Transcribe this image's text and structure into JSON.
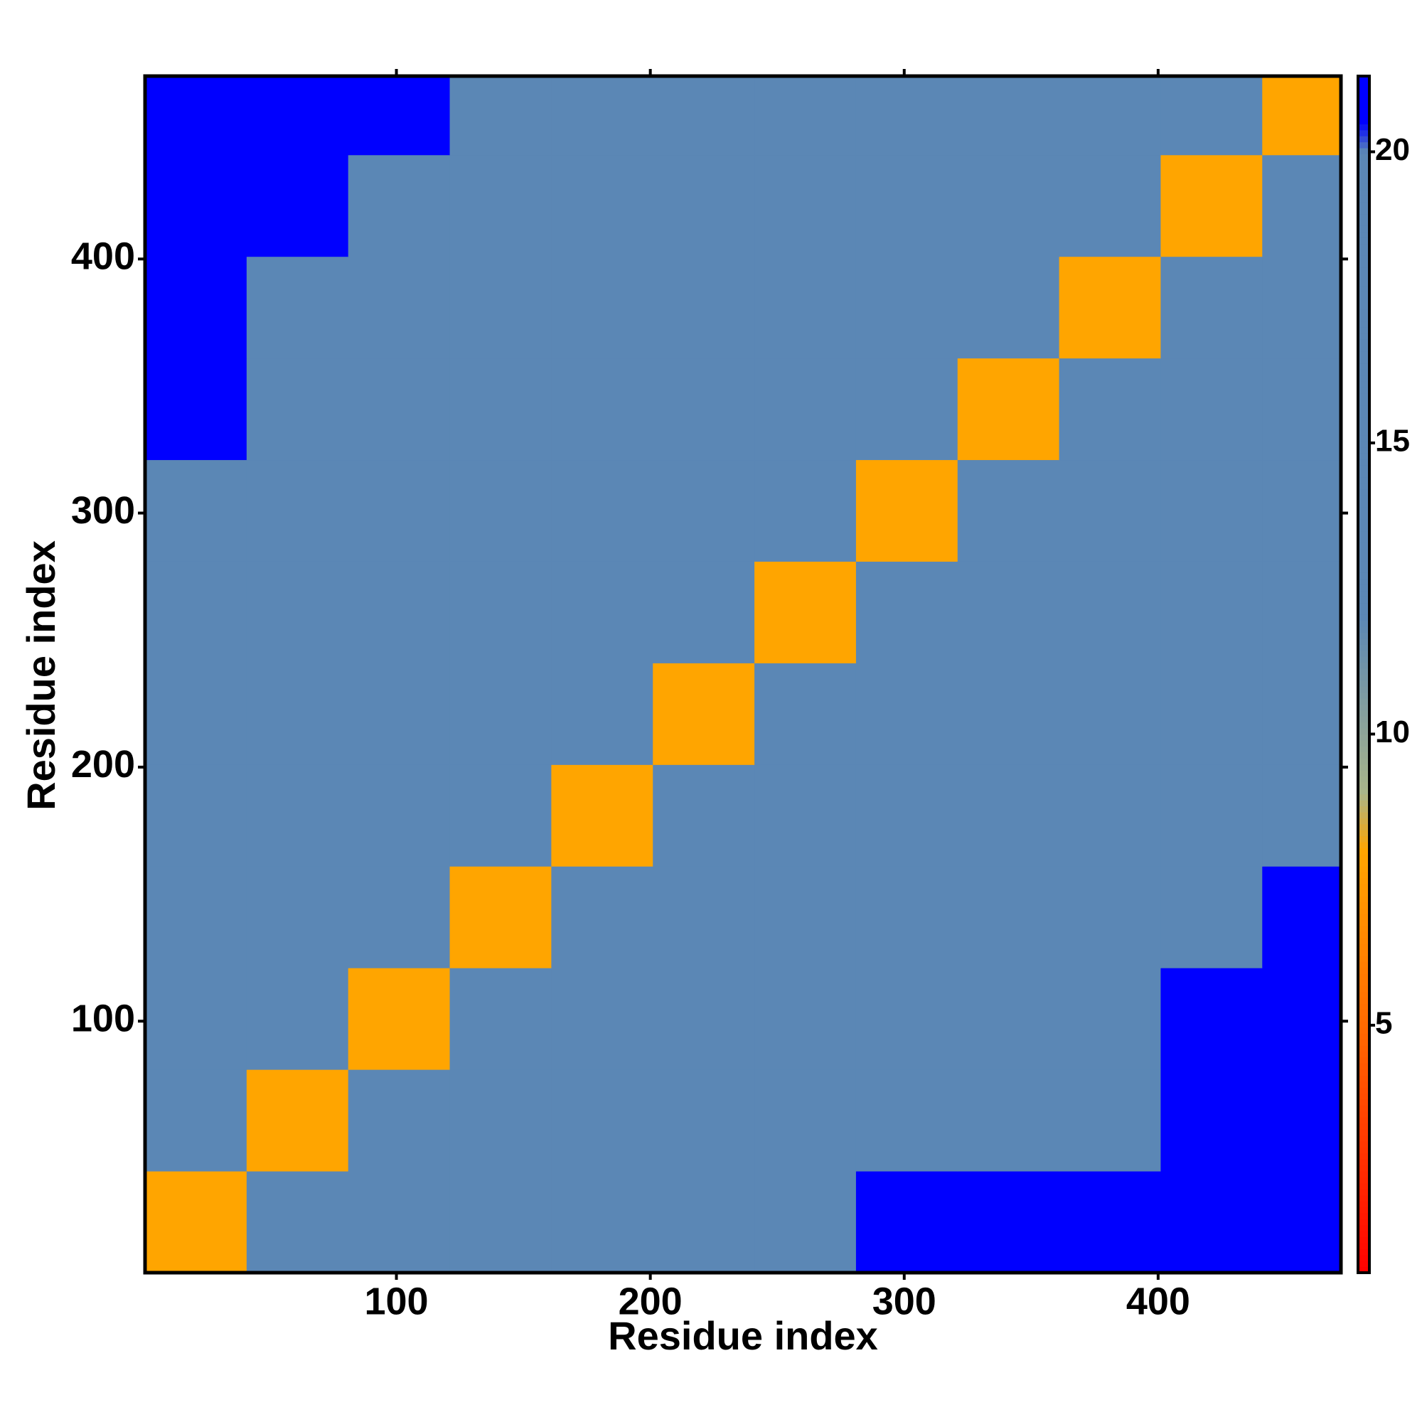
{
  "chart_data": {
    "type": "heatmap",
    "xlabel": "Residue index",
    "ylabel": "Residue index",
    "xbins": [
      1,
      41,
      81,
      121,
      161,
      201,
      241,
      281,
      321,
      361,
      401,
      441,
      472
    ],
    "ybins": [
      1,
      41,
      81,
      121,
      161,
      201,
      241,
      281,
      321,
      361,
      401,
      441,
      472
    ],
    "xlim": [
      1,
      472
    ],
    "ylim": [
      1,
      472
    ],
    "xticks": [
      100,
      200,
      300,
      400
    ],
    "yticks": [
      100,
      200,
      300,
      400
    ],
    "z": [
      [
        8,
        16,
        17,
        19,
        19,
        19,
        19,
        21,
        21,
        21,
        21,
        21
      ],
      [
        16,
        8,
        15,
        18,
        18,
        18,
        18,
        20,
        20,
        20,
        21,
        21
      ],
      [
        18,
        14,
        8,
        15,
        18,
        18,
        18,
        20,
        20,
        19,
        21,
        21
      ],
      [
        18,
        17,
        14,
        8,
        15,
        18,
        18,
        20,
        19,
        19,
        20,
        21
      ],
      [
        19,
        18,
        17,
        14,
        8,
        14,
        18,
        19,
        19,
        19,
        19,
        20
      ],
      [
        19,
        18,
        18,
        17,
        14,
        8,
        14,
        17,
        19,
        18,
        19,
        20
      ],
      [
        19,
        18,
        18,
        18,
        16,
        14,
        8,
        14,
        17,
        18,
        18,
        19
      ],
      [
        20,
        18,
        18,
        18,
        18,
        17,
        14,
        8,
        14,
        17,
        18,
        19
      ],
      [
        21,
        20,
        18,
        18,
        18,
        18,
        17,
        14,
        8,
        14,
        17,
        18
      ],
      [
        21,
        20,
        19,
        19,
        18,
        18,
        18,
        16,
        14,
        8,
        14,
        17
      ],
      [
        21,
        21,
        20,
        19,
        19,
        19,
        19,
        18,
        17,
        14,
        8,
        14
      ],
      [
        21,
        21,
        21,
        20,
        20,
        20,
        20,
        20,
        19,
        17,
        14,
        8
      ]
    ],
    "colorbar": {
      "lim": [
        0.75,
        21.3
      ],
      "ticks": [
        5,
        10,
        15,
        20
      ]
    },
    "colorscale": [
      [
        0.75,
        "#ff0000"
      ],
      [
        5,
        "#ff6a00"
      ],
      [
        8,
        "#ffa500"
      ],
      [
        9,
        "#a8b48a"
      ],
      [
        12,
        "#5b87b5"
      ],
      [
        20,
        "#5b87b5"
      ],
      [
        20.5,
        "#0000ff"
      ],
      [
        21.3,
        "#0000ff"
      ]
    ]
  }
}
